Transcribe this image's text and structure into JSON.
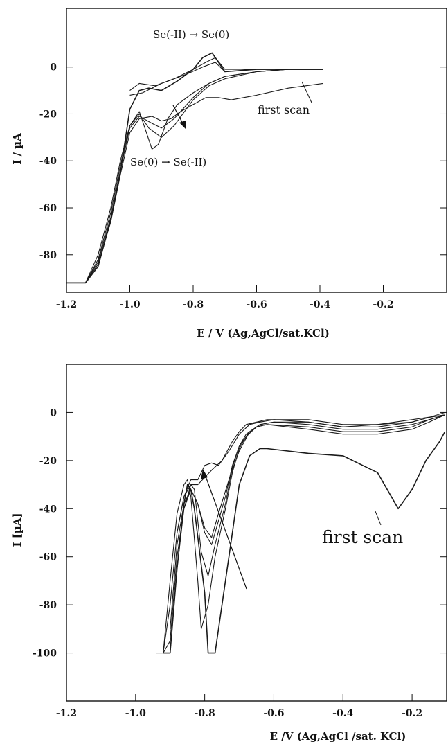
{
  "chart_data": [
    {
      "type": "line",
      "xlabel": "E / V (Ag,AgCl/sat.KCl)",
      "ylabel": "I / µA",
      "xlim": [
        -1.2,
        0.0
      ],
      "ylim": [
        -96,
        25
      ],
      "xticks": [
        "-1.2",
        "-1.0",
        "-0.8",
        "-0.6",
        "-0.4",
        "-0.2"
      ],
      "yticks": [
        "0",
        "-20",
        "-40",
        "-60",
        "-80"
      ],
      "annotations": {
        "oxidation": "Se(-II) → Se(0)",
        "reduction": "Se(0) → Se(-II)",
        "first_scan": "first scan"
      },
      "series": [
        {
          "x": [
            -0.39,
            -0.5,
            -0.6,
            -0.7,
            -0.74,
            -0.77,
            -0.8,
            -0.85,
            -0.9,
            -0.94,
            -0.97,
            -1.0,
            -1.03,
            -1.06,
            -1.1,
            -1.14,
            -1.2
          ],
          "y": [
            -1,
            -1,
            -1,
            -2,
            6,
            4,
            -1,
            -6,
            -10,
            -9,
            -10,
            -18,
            -45,
            -65,
            -85,
            -92,
            -92
          ]
        },
        {
          "x": [
            -1.2,
            -1.14,
            -1.1,
            -1.06,
            -1.03,
            -1.0,
            -0.97,
            -0.95,
            -0.93,
            -0.91,
            -0.88,
            -0.85,
            -0.8,
            -0.75,
            -0.7,
            -0.6,
            -0.5,
            -0.39
          ],
          "y": [
            -92,
            -92,
            -80,
            -60,
            -40,
            -25,
            -19,
            -27,
            -35,
            -33,
            -22,
            -16,
            -11,
            -7,
            -4,
            -2,
            -1,
            -1
          ]
        },
        {
          "x": [
            -1.2,
            -1.14,
            -1.1,
            -1.06,
            -1.03,
            -1.0,
            -0.97,
            -0.94,
            -0.9,
            -0.86,
            -0.8,
            -0.75,
            -0.7,
            -0.6,
            -0.5,
            -0.39
          ],
          "y": [
            -92,
            -92,
            -82,
            -62,
            -42,
            -25,
            -20,
            -26,
            -30,
            -25,
            -14,
            -8,
            -5,
            -2,
            -1,
            -1
          ]
        },
        {
          "x": [
            -1.2,
            -1.14,
            -1.1,
            -1.06,
            -1.03,
            -1.0,
            -0.97,
            -0.93,
            -0.9,
            -0.86,
            -0.8,
            -0.75,
            -0.7,
            -0.6,
            -0.5,
            -0.39
          ],
          "y": [
            -92,
            -92,
            -83,
            -64,
            -44,
            -26,
            -21,
            -24,
            -26,
            -22,
            -13,
            -7,
            -4,
            -2,
            -1,
            -1
          ]
        },
        {
          "x": [
            -1.2,
            -1.14,
            -1.1,
            -1.06,
            -1.03,
            -1.0,
            -0.97,
            -0.93,
            -0.9,
            -0.87,
            -0.84,
            -0.8,
            -0.76,
            -0.72,
            -0.68,
            -0.6,
            -0.5,
            -0.39
          ],
          "y": [
            -92,
            -92,
            -84,
            -66,
            -46,
            -28,
            -22,
            -21,
            -23,
            -22,
            -19,
            -16,
            -13,
            -13,
            -14,
            -12,
            -9,
            -7
          ]
        },
        {
          "x": [
            -0.39,
            -0.5,
            -0.6,
            -0.7,
            -0.73,
            -0.76,
            -0.8,
            -0.86,
            -0.92,
            -0.97,
            -1.0
          ],
          "y": [
            -1,
            -1,
            -1,
            -1,
            4,
            2,
            -1,
            -5,
            -8,
            -7,
            -10
          ]
        },
        {
          "x": [
            -0.39,
            -0.5,
            -0.6,
            -0.7,
            -0.73,
            -0.77,
            -0.82,
            -0.9,
            -0.96,
            -1.0
          ],
          "y": [
            -1,
            -1,
            -1,
            -2,
            2,
            0,
            -3,
            -7,
            -11,
            -12
          ]
        }
      ]
    },
    {
      "type": "line",
      "xlabel": "E /V  (Ag,AgCl /sat. KCl)",
      "ylabel": "I [µA]",
      "xlim": [
        -1.2,
        -0.1
      ],
      "ylim": [
        -120,
        20
      ],
      "xticks": [
        "-1.2",
        "-1.0",
        "-0.8",
        "-0.6",
        "-0.4",
        "-0.2"
      ],
      "yticks": [
        "0",
        "-20",
        "-40",
        "-60",
        "-80",
        "-100"
      ],
      "annotations": {
        "first_scan": "first scan"
      },
      "series": [
        {
          "x": [
            -0.92,
            -0.9,
            -0.88,
            -0.86,
            -0.85,
            -0.84,
            -0.83,
            -0.8,
            -0.79,
            -0.77,
            -0.75,
            -0.72,
            -0.7,
            -0.67,
            -0.64,
            -0.62,
            -0.5,
            -0.4,
            -0.3,
            -0.24,
            -0.2,
            -0.16,
            -0.12,
            -0.105
          ],
          "y": [
            -100,
            -100,
            -65,
            -38,
            -30,
            -32,
            -40,
            -75,
            -100,
            -100,
            -80,
            -50,
            -30,
            -18,
            -15,
            -15,
            -17,
            -18,
            -25,
            -40,
            -32,
            -20,
            -12,
            -8
          ]
        },
        {
          "x": [
            -0.94,
            -0.92,
            -0.9,
            -0.88,
            -0.86,
            -0.85,
            -0.84,
            -0.82,
            -0.81,
            -0.79,
            -0.77,
            -0.74,
            -0.72,
            -0.7,
            -0.68,
            -0.65,
            -0.62,
            -0.5,
            -0.4,
            -0.3,
            -0.2,
            -0.15,
            -0.105
          ],
          "y": [
            -100,
            -100,
            -70,
            -42,
            -30,
            -28,
            -35,
            -70,
            -90,
            -80,
            -60,
            -40,
            -25,
            -15,
            -10,
            -6,
            -5,
            -7,
            -9,
            -9,
            -7,
            -4,
            -1
          ]
        },
        {
          "x": [
            -0.92,
            -0.9,
            -0.88,
            -0.86,
            -0.84,
            -0.83,
            -0.81,
            -0.79,
            -0.77,
            -0.74,
            -0.72,
            -0.7,
            -0.68,
            -0.65,
            -0.62,
            -0.5,
            -0.4,
            -0.3,
            -0.2,
            -0.15,
            -0.105
          ],
          "y": [
            -100,
            -100,
            -65,
            -40,
            -30,
            -32,
            -58,
            -68,
            -55,
            -38,
            -23,
            -14,
            -9,
            -6,
            -5,
            -6,
            -8,
            -8,
            -6,
            -3,
            -1
          ]
        },
        {
          "x": [
            -0.92,
            -0.9,
            -0.88,
            -0.86,
            -0.84,
            -0.82,
            -0.8,
            -0.78,
            -0.76,
            -0.74,
            -0.72,
            -0.7,
            -0.67,
            -0.64,
            -0.6,
            -0.5,
            -0.4,
            -0.3,
            -0.2,
            -0.15,
            -0.105
          ],
          "y": [
            -100,
            -95,
            -60,
            -40,
            -32,
            -38,
            -50,
            -55,
            -45,
            -35,
            -22,
            -14,
            -8,
            -5,
            -4,
            -5,
            -7,
            -7,
            -5,
            -3,
            -1
          ]
        },
        {
          "x": [
            -0.9,
            -0.88,
            -0.86,
            -0.84,
            -0.82,
            -0.8,
            -0.78,
            -0.76,
            -0.73,
            -0.7,
            -0.67,
            -0.64,
            -0.6,
            -0.5,
            -0.4,
            -0.3,
            -0.2,
            -0.15,
            -0.105
          ],
          "y": [
            -90,
            -55,
            -38,
            -32,
            -38,
            -48,
            -52,
            -42,
            -28,
            -16,
            -8,
            -5,
            -4,
            -4,
            -6,
            -6,
            -4,
            -2,
            -1
          ]
        },
        {
          "x": [
            -0.88,
            -0.86,
            -0.84,
            -0.82,
            -0.8,
            -0.78,
            -0.76,
            -0.73,
            -0.7,
            -0.67,
            -0.64,
            -0.6,
            -0.5,
            -0.4,
            -0.3,
            -0.2,
            -0.105
          ],
          "y": [
            -50,
            -35,
            -28,
            -28,
            -22,
            -21,
            -22,
            -16,
            -9,
            -5,
            -4,
            -3,
            -3,
            -5,
            -5,
            -3,
            -1
          ]
        },
        {
          "x": [
            -0.92,
            -0.9,
            -0.88,
            -0.86,
            -0.84,
            -0.82,
            -0.8,
            -0.78,
            -0.75,
            -0.72,
            -0.7,
            -0.68,
            -0.65,
            -0.62,
            -0.6,
            -0.5,
            -0.4,
            -0.3,
            -0.2,
            -0.15,
            -0.105
          ],
          "y": [
            -100,
            -80,
            -50,
            -35,
            -30,
            -30,
            -27,
            -24,
            -20,
            -12,
            -8,
            -5,
            -4,
            -3,
            -3,
            -4,
            -6,
            -5,
            -4,
            -2,
            0
          ]
        }
      ]
    }
  ]
}
